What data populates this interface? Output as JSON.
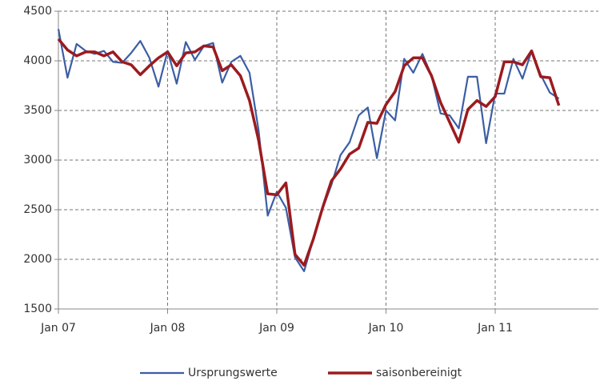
{
  "chart_data": {
    "type": "line",
    "categories": [
      "Jan 07",
      null,
      null,
      null,
      null,
      null,
      null,
      null,
      null,
      null,
      null,
      null,
      "Jan 08",
      null,
      null,
      null,
      null,
      null,
      null,
      null,
      null,
      null,
      null,
      null,
      "Jan 09",
      null,
      null,
      null,
      null,
      null,
      null,
      null,
      null,
      null,
      null,
      null,
      "Jan 10",
      null,
      null,
      null,
      null,
      null,
      null,
      null,
      null,
      null,
      null,
      null,
      "Jan 11",
      null,
      null,
      null,
      null,
      null,
      null,
      null
    ],
    "series": [
      {
        "name": "Ursprungswerte",
        "color": "#3b5ea4",
        "values": [
          4320,
          3830,
          4170,
          4100,
          4070,
          4100,
          3990,
          3980,
          4080,
          4200,
          4030,
          3740,
          4100,
          3770,
          4190,
          4010,
          4150,
          4180,
          3780,
          3990,
          4050,
          3880,
          3300,
          2440,
          2680,
          2520,
          2020,
          1880,
          2200,
          2500,
          2750,
          3050,
          3180,
          3450,
          3530,
          3020,
          3500,
          3400,
          4020,
          3880,
          4070,
          3850,
          3470,
          3450,
          3320,
          3840,
          3840,
          3170,
          3670,
          3670,
          4020,
          3820,
          4100,
          3860,
          3680,
          3620
        ]
      },
      {
        "name": "saisonbereinigt",
        "color": "#9b1b1f",
        "values": [
          4220,
          4110,
          4050,
          4090,
          4090,
          4050,
          4090,
          3990,
          3960,
          3860,
          3950,
          4030,
          4090,
          3950,
          4080,
          4090,
          4150,
          4140,
          3900,
          3960,
          3850,
          3600,
          3200,
          2660,
          2650,
          2770,
          2050,
          1940,
          2200,
          2510,
          2790,
          2910,
          3060,
          3120,
          3380,
          3370,
          3560,
          3690,
          3950,
          4030,
          4030,
          3850,
          3580,
          3380,
          3180,
          3510,
          3600,
          3540,
          3640,
          3990,
          3990,
          3960,
          4100,
          3840,
          3830,
          3550
        ]
      }
    ],
    "ylim": [
      1500,
      4500
    ],
    "yticks": [
      1500,
      2000,
      2500,
      3000,
      3500,
      4000,
      4500
    ],
    "grid": true,
    "legend": "bottom"
  }
}
